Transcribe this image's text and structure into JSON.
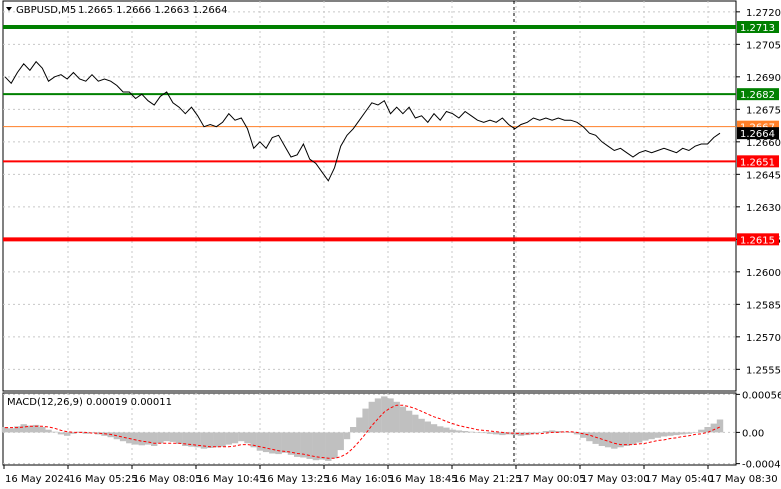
{
  "header": {
    "symbol": "GBPUSD,M5",
    "ohlc": "1.2665 1.2666 1.2663 1.2664"
  },
  "macd_header": {
    "label": "MACD(12,26,9) 0.00019 0.00011"
  },
  "chart_data": {
    "type": "line",
    "title": "GBPUSD,M5",
    "price_ylim": [
      1.2545,
      1.2725
    ],
    "price_ticks": [
      "1.2720",
      "1.2705",
      "1.2690",
      "1.2675",
      "1.2660",
      "1.2645",
      "1.2630",
      "1.2615",
      "1.2600",
      "1.2585",
      "1.2570",
      "1.2555"
    ],
    "x_tick_labels": [
      "16 May 2024",
      "16 May 05:25",
      "16 May 08:05",
      "16 May 10:45",
      "16 May 13:25",
      "16 May 16:05",
      "16 May 18:45",
      "16 May 21:25",
      "17 May 00:05",
      "17 May 03:00",
      "17 May 05:40",
      "17 May 08:30"
    ],
    "price_series": {
      "name": "GBPUSD",
      "values": [
        1.269,
        1.2687,
        1.2692,
        1.2696,
        1.2693,
        1.2697,
        1.2694,
        1.2688,
        1.269,
        1.2691,
        1.2689,
        1.2692,
        1.2689,
        1.2688,
        1.2691,
        1.2688,
        1.2689,
        1.2688,
        1.2686,
        1.2683,
        1.2683,
        1.268,
        1.2682,
        1.2679,
        1.2677,
        1.2681,
        1.2683,
        1.2678,
        1.2676,
        1.2673,
        1.2676,
        1.2672,
        1.2667,
        1.2668,
        1.2667,
        1.2669,
        1.2673,
        1.267,
        1.2671,
        1.2666,
        1.2657,
        1.266,
        1.2657,
        1.2662,
        1.2663,
        1.2658,
        1.2653,
        1.2654,
        1.2659,
        1.2652,
        1.265,
        1.2646,
        1.2642,
        1.2648,
        1.2658,
        1.2663,
        1.2666,
        1.267,
        1.2674,
        1.2678,
        1.2677,
        1.2679,
        1.2673,
        1.2676,
        1.2673,
        1.2676,
        1.2671,
        1.2672,
        1.2669,
        1.2673,
        1.267,
        1.2674,
        1.2673,
        1.2671,
        1.2674,
        1.2672,
        1.267,
        1.2669,
        1.267,
        1.2669,
        1.2671,
        1.2668,
        1.2666,
        1.2668,
        1.2669,
        1.2671,
        1.267,
        1.2671,
        1.267,
        1.2671,
        1.267,
        1.267,
        1.2669,
        1.2667,
        1.2664,
        1.2663,
        1.266,
        1.2658,
        1.2656,
        1.2657,
        1.2655,
        1.2653,
        1.2655,
        1.2656,
        1.2655,
        1.2656,
        1.2657,
        1.2656,
        1.2655,
        1.2657,
        1.2656,
        1.2658,
        1.2659,
        1.2659,
        1.2662,
        1.2664
      ]
    },
    "levels": [
      {
        "value": 1.2713,
        "label": "1.2713",
        "color": "#008000",
        "style": "thick"
      },
      {
        "value": 1.2682,
        "label": "1.2682",
        "color": "#008000",
        "style": "normal"
      },
      {
        "value": 1.2667,
        "label": "1.2667",
        "color": "#ff7f27",
        "style": "thin"
      },
      {
        "value": 1.2664,
        "label": "1.2664",
        "color": "#000000",
        "style": "marker"
      },
      {
        "value": 1.2651,
        "label": "1.2651",
        "color": "#ff0000",
        "style": "normal"
      },
      {
        "value": 1.2615,
        "label": "1.2615",
        "color": "#ff0000",
        "style": "thick"
      }
    ],
    "macd": {
      "ylim": [
        -0.00048,
        0.00058
      ],
      "ticks": [
        "0.00056",
        "0.00",
        "-0.00046"
      ],
      "histogram": [
        8e-05,
        6e-05,
        9e-05,
        0.00012,
        0.0001,
        0.00011,
        8e-05,
        4e-05,
        1e-05,
        -3e-05,
        -5e-05,
        -2e-05,
        1e-05,
        -2e-05,
        -1e-05,
        -3e-05,
        -5e-05,
        -7e-05,
        -0.0001,
        -0.00013,
        -0.00016,
        -0.00018,
        -0.00019,
        -0.00018,
        -0.0002,
        -0.00016,
        -0.00013,
        -0.00014,
        -0.00017,
        -0.0002,
        -0.00021,
        -0.00022,
        -0.00024,
        -0.00023,
        -0.00022,
        -0.00021,
        -0.00018,
        -0.00016,
        -0.00013,
        -0.00016,
        -0.00022,
        -0.00027,
        -0.00029,
        -0.00031,
        -0.00032,
        -0.0003,
        -0.00033,
        -0.00036,
        -0.00037,
        -0.00039,
        -0.00041,
        -0.0004,
        -0.00042,
        -0.00038,
        -0.00026,
        -0.0001,
        8e-05,
        0.00022,
        0.00035,
        0.00045,
        0.0005,
        0.00053,
        0.0005,
        0.00045,
        0.00038,
        0.00032,
        0.00026,
        0.0002,
        0.00016,
        0.00012,
        9e-05,
        7e-05,
        4e-05,
        3e-05,
        2e-05,
        1e-05,
        0.0,
        -1e-05,
        -2e-05,
        -3e-05,
        -4e-05,
        -3e-05,
        -4e-05,
        -5e-05,
        -4e-05,
        -2e-05,
        0.0,
        2e-05,
        3e-05,
        2e-05,
        1e-05,
        0.0,
        -3e-05,
        -8e-05,
        -0.00013,
        -0.00017,
        -0.0002,
        -0.00022,
        -0.00024,
        -0.00022,
        -0.0002,
        -0.00018,
        -0.00015,
        -0.00012,
        -0.0001,
        -8e-05,
        -6e-05,
        -5e-05,
        -4e-05,
        -3e-05,
        -2e-05,
        0.0,
        4e-05,
        8e-05,
        0.00013,
        0.00019
      ],
      "signal": [
        7e-05,
        7e-05,
        7e-05,
        8e-05,
        9e-05,
        9e-05,
        9e-05,
        8e-05,
        6e-05,
        3e-05,
        1e-05,
        0.0,
        0.0,
        0.0,
        -1e-05,
        -1e-05,
        -2e-05,
        -3e-05,
        -5e-05,
        -7e-05,
        -9e-05,
        -0.00011,
        -0.00013,
        -0.00014,
        -0.00016,
        -0.00016,
        -0.00016,
        -0.00016,
        -0.00016,
        -0.00017,
        -0.00018,
        -0.00019,
        -0.0002,
        -0.00021,
        -0.00021,
        -0.00021,
        -0.00021,
        -0.0002,
        -0.00018,
        -0.00018,
        -0.00019,
        -0.00021,
        -0.00023,
        -0.00025,
        -0.00027,
        -0.00028,
        -0.00029,
        -0.00031,
        -0.00032,
        -0.00034,
        -0.00036,
        -0.00037,
        -0.00038,
        -0.00038,
        -0.00036,
        -0.00031,
        -0.00023,
        -0.00013,
        -2e-05,
        0.0001,
        0.0002,
        0.0003,
        0.00036,
        0.0004,
        0.0004,
        0.00038,
        0.00035,
        0.00031,
        0.00027,
        0.00023,
        0.0002,
        0.00016,
        0.00013,
        0.0001,
        8e-05,
        6e-05,
        4e-05,
        3e-05,
        2e-05,
        1e-05,
        0.0,
        -1e-05,
        -1e-05,
        -2e-05,
        -2e-05,
        -2e-05,
        -2e-05,
        -1e-05,
        0.0,
        0.0,
        1e-05,
        1e-05,
        0.0,
        -2e-05,
        -4e-05,
        -7e-05,
        -0.0001,
        -0.00013,
        -0.00016,
        -0.00018,
        -0.00018,
        -0.00018,
        -0.00017,
        -0.00016,
        -0.00014,
        -0.00012,
        -0.00011,
        -9e-05,
        -8e-05,
        -6e-05,
        -5e-05,
        -3e-05,
        -2e-05,
        0.0,
        4e-05,
        8e-05
      ]
    }
  }
}
